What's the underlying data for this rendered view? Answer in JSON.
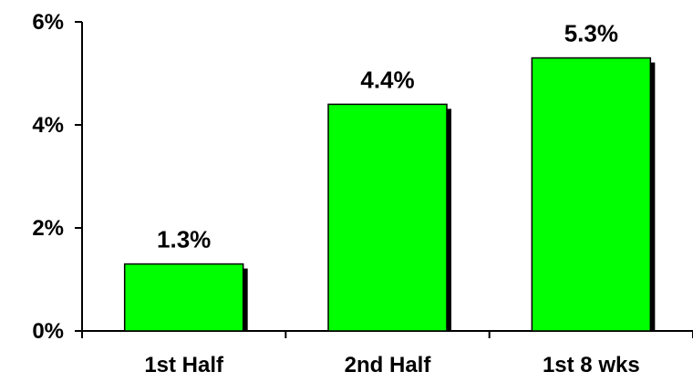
{
  "chart_data": {
    "type": "bar",
    "categories": [
      "1st Half",
      "2nd Half",
      "1st 8 wks"
    ],
    "values": [
      1.3,
      4.4,
      5.3
    ],
    "value_labels": [
      "1.3%",
      "4.4%",
      "5.3%"
    ],
    "ylim": [
      0,
      6
    ],
    "yticks": [
      0,
      2,
      4,
      6
    ],
    "ytick_labels": [
      "0%",
      "2%",
      "4%",
      "6%"
    ],
    "grid": false,
    "bar_color": "#00FF00",
    "shadow_color": "#000000"
  }
}
